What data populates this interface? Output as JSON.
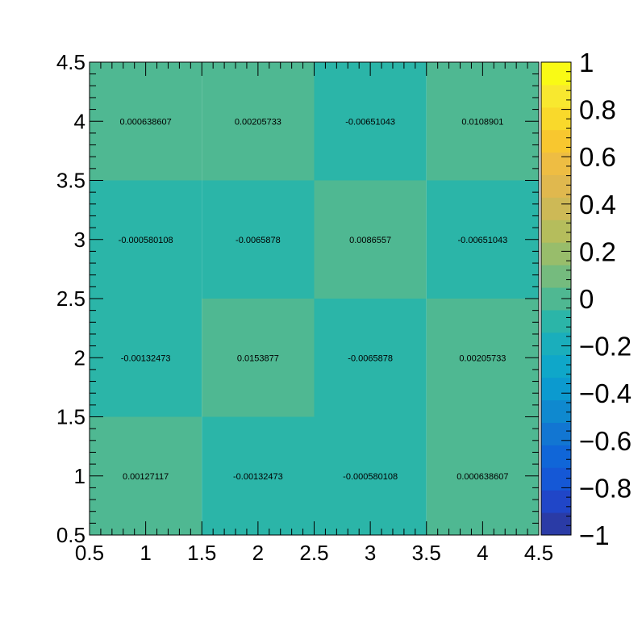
{
  "chart_data": {
    "type": "heatmap",
    "title": "",
    "xlabel": "",
    "ylabel": "",
    "xlim": [
      0.5,
      4.5
    ],
    "ylim": [
      0.5,
      4.5
    ],
    "zlim": [
      -1,
      1
    ],
    "x_bin_centers": [
      1,
      2,
      3,
      4
    ],
    "y_bin_centers": [
      1,
      2,
      3,
      4
    ],
    "x_tick_labels": [
      "0.5",
      "1",
      "1.5",
      "2",
      "2.5",
      "3",
      "3.5",
      "4",
      "4.5"
    ],
    "y_tick_labels": [
      "0.5",
      "1",
      "1.5",
      "2",
      "2.5",
      "3",
      "3.5",
      "4",
      "4.5"
    ],
    "z_tick_labels": [
      "−1",
      "−0.8",
      "−0.6",
      "−0.4",
      "−0.2",
      "0",
      "0.2",
      "0.4",
      "0.6",
      "0.8",
      "1"
    ],
    "cells": [
      {
        "x": 1,
        "y": 4,
        "value": 0.000638607,
        "label": "0.000638607"
      },
      {
        "x": 2,
        "y": 4,
        "value": 0.00205733,
        "label": "0.00205733"
      },
      {
        "x": 3,
        "y": 4,
        "value": -0.00651043,
        "label": "-0.00651043"
      },
      {
        "x": 4,
        "y": 4,
        "value": 0.0108901,
        "label": "0.0108901"
      },
      {
        "x": 1,
        "y": 3,
        "value": -0.000580108,
        "label": "-0.000580108"
      },
      {
        "x": 2,
        "y": 3,
        "value": -0.0065878,
        "label": "-0.0065878"
      },
      {
        "x": 3,
        "y": 3,
        "value": 0.0086557,
        "label": "0.0086557"
      },
      {
        "x": 4,
        "y": 3,
        "value": -0.00651043,
        "label": "-0.00651043"
      },
      {
        "x": 1,
        "y": 2,
        "value": -0.00132473,
        "label": "-0.00132473"
      },
      {
        "x": 2,
        "y": 2,
        "value": 0.0153877,
        "label": "0.0153877"
      },
      {
        "x": 3,
        "y": 2,
        "value": -0.0065878,
        "label": "-0.0065878"
      },
      {
        "x": 4,
        "y": 2,
        "value": 0.00205733,
        "label": "0.00205733"
      },
      {
        "x": 1,
        "y": 1,
        "value": 0.00127117,
        "label": "0.00127117"
      },
      {
        "x": 2,
        "y": 1,
        "value": -0.00132473,
        "label": "-0.00132473"
      },
      {
        "x": 3,
        "y": 1,
        "value": -0.000580108,
        "label": "-0.000580108"
      },
      {
        "x": 4,
        "y": 1,
        "value": 0.000638607,
        "label": "0.000638607"
      }
    ],
    "color_levels": [
      "#2a3ba6",
      "#2046c8",
      "#1558d6",
      "#1066d8",
      "#1276d2",
      "#0f89cf",
      "#0c9acf",
      "#0fa7c9",
      "#1aaebc",
      "#2bb5a8",
      "#4fb892",
      "#75bb7e",
      "#98bd6b",
      "#b5bd5c",
      "#cdb956",
      "#e0b84e",
      "#eebd43",
      "#f8c72f",
      "#f9d92b",
      "#f8e82f",
      "#f9fa15"
    ],
    "color_split_value": 0,
    "neg_cell_color": "#2bb5a8",
    "pos_cell_color": "#4fb892",
    "grid": false
  }
}
